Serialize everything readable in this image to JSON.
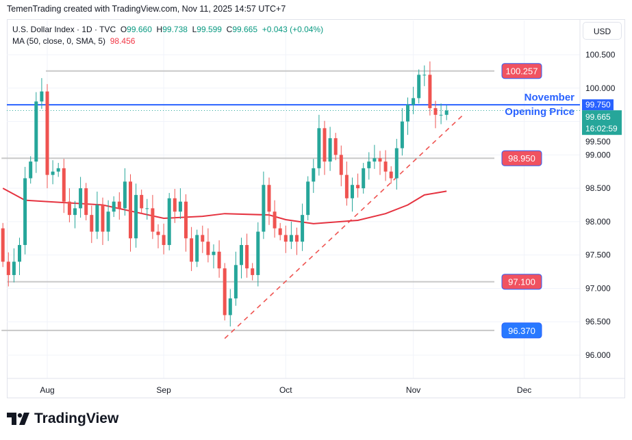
{
  "header": {
    "credit": "TemenTrading created with TradingView.com, Nov 11, 2025 14:57 UTC+7"
  },
  "legend": {
    "symbol": "U.S. Dollar Index · 1D · TVC",
    "o_label": "O",
    "o": "99.660",
    "h_label": "H",
    "h": "99.738",
    "l_label": "L",
    "l": "99.599",
    "c_label": "C",
    "c": "99.665",
    "change": "+0.043 (+0.04%)",
    "ma_label": "MA (50, close, 0, SMA, 5)",
    "ma_value": "98.456"
  },
  "currency": "USD",
  "logo": "TradingView",
  "colors": {
    "up": "#26a69a",
    "down": "#ef5350",
    "ma": "#e5323f",
    "blue": "#2962ff",
    "level": "#f05260"
  },
  "chart_data": {
    "type": "candlestick",
    "ylim": [
      95.55,
      100.95
    ],
    "yticks": [
      "100.500",
      "100.000",
      "99.500",
      "99.000",
      "98.500",
      "98.000",
      "97.500",
      "97.000",
      "96.500",
      "96.000"
    ],
    "ytick_values": [
      100.5,
      100,
      99.5,
      99,
      98.5,
      98,
      97.5,
      97,
      96.5,
      96
    ],
    "xticks": [
      {
        "label": "Aug",
        "idx": 8
      },
      {
        "label": "Sep",
        "idx": 29
      },
      {
        "label": "Oct",
        "idx": 51
      },
      {
        "label": "Nov",
        "idx": 74
      },
      {
        "label": "Dec",
        "idx": 94
      }
    ],
    "start_open": 97.9,
    "closes": [
      97.4,
      97.2,
      97.4,
      97.65,
      98.65,
      98.9,
      99.8,
      99.95,
      98.7,
      98.75,
      98.8,
      98.3,
      98.1,
      98.2,
      98.5,
      98.1,
      97.85,
      98.25,
      97.85,
      98.15,
      98.3,
      98.2,
      98.6,
      97.75,
      98.4,
      98.2,
      98.2,
      97.85,
      97.8,
      97.65,
      98.35,
      98.15,
      98.3,
      97.75,
      97.4,
      97.8,
      97.7,
      97.5,
      97.55,
      97.3,
      96.6,
      96.85,
      97.35,
      97.65,
      97.3,
      97.2,
      97.85,
      98.55,
      98.15,
      97.9,
      97.8,
      97.7,
      97.8,
      97.7,
      98.1,
      98.6,
      98.8,
      99.4,
      98.9,
      99.25,
      99.0,
      98.7,
      98.35,
      98.55,
      98.5,
      98.8,
      98.9,
      98.95,
      98.9,
      98.75,
      98.65,
      99.1,
      99.5,
      99.75,
      99.85,
      100.2,
      100.2,
      99.7,
      99.6,
      99.6,
      99.665
    ],
    "ma": {
      "name": "MA 50",
      "points": [
        [
          0,
          98.5
        ],
        [
          4,
          98.32
        ],
        [
          8,
          98.3
        ],
        [
          18,
          98.25
        ],
        [
          29,
          98.05
        ],
        [
          36,
          98.08
        ],
        [
          40,
          98.12
        ],
        [
          48,
          98.1
        ],
        [
          51,
          98.03
        ],
        [
          56,
          97.97
        ],
        [
          64,
          98.02
        ],
        [
          69,
          98.12
        ],
        [
          73,
          98.25
        ],
        [
          76,
          98.4
        ],
        [
          80,
          98.456
        ]
      ]
    },
    "levels": [
      {
        "label": "100.257",
        "value": 100.257,
        "from_idx": 8
      },
      {
        "label": "98.950",
        "value": 98.95,
        "from_idx": 0
      },
      {
        "label": "97.100",
        "value": 97.1,
        "from_idx": 1
      },
      {
        "label": "96.370",
        "value": 96.37,
        "from_idx": 0,
        "color": "blue"
      }
    ],
    "trendline": {
      "from": [
        40,
        96.25
      ],
      "to": [
        83,
        99.6
      ]
    },
    "november_open": {
      "value": 99.75,
      "label": "99.750",
      "text1": "November",
      "text2": "Opening Price"
    },
    "last": {
      "value": 99.665,
      "label": "99.665",
      "countdown": "16:02:59"
    }
  }
}
